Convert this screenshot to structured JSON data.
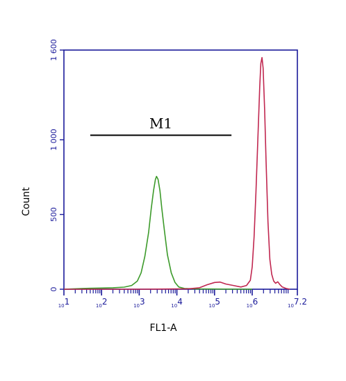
{
  "chart_data": {
    "type": "line",
    "xlabel": "FL1-A",
    "ylabel": "Count",
    "x_scale": "log",
    "xlim": [
      1,
      7.2
    ],
    "ylim": [
      0,
      1600
    ],
    "x_ticks": [
      {
        "value": 1,
        "label": "10^1"
      },
      {
        "value": 2,
        "label": "10^2"
      },
      {
        "value": 3,
        "label": "10^3"
      },
      {
        "value": 4,
        "label": "10^4"
      },
      {
        "value": 5,
        "label": "10^5"
      },
      {
        "value": 6,
        "label": "10^6"
      },
      {
        "value": 7.2,
        "label": "10^7.2"
      }
    ],
    "y_ticks": [
      {
        "value": 0,
        "label": "0"
      },
      {
        "value": 500,
        "label": "500"
      },
      {
        "value": 1000,
        "label": "1 000"
      },
      {
        "value": 1600,
        "label": "1 600"
      }
    ],
    "gate": {
      "label": "M1",
      "x_start": 1.7,
      "x_end": 5.45,
      "y": 1030
    },
    "series": [
      {
        "color": "#3c9a2a",
        "points": [
          [
            1.0,
            0
          ],
          [
            1.5,
            5
          ],
          [
            2.0,
            8
          ],
          [
            2.3,
            10
          ],
          [
            2.6,
            14
          ],
          [
            2.8,
            25
          ],
          [
            2.95,
            55
          ],
          [
            3.05,
            110
          ],
          [
            3.15,
            220
          ],
          [
            3.25,
            380
          ],
          [
            3.32,
            540
          ],
          [
            3.38,
            660
          ],
          [
            3.43,
            735
          ],
          [
            3.46,
            755
          ],
          [
            3.5,
            735
          ],
          [
            3.55,
            660
          ],
          [
            3.6,
            540
          ],
          [
            3.67,
            390
          ],
          [
            3.75,
            230
          ],
          [
            3.85,
            110
          ],
          [
            3.95,
            45
          ],
          [
            4.05,
            15
          ],
          [
            4.2,
            5
          ],
          [
            4.5,
            2
          ],
          [
            6.0,
            0
          ]
        ]
      },
      {
        "color": "#c0264f",
        "points": [
          [
            1.0,
            0
          ],
          [
            3.0,
            0
          ],
          [
            4.3,
            3
          ],
          [
            4.6,
            10
          ],
          [
            4.8,
            30
          ],
          [
            5.0,
            45
          ],
          [
            5.15,
            48
          ],
          [
            5.3,
            35
          ],
          [
            5.5,
            25
          ],
          [
            5.7,
            15
          ],
          [
            5.85,
            25
          ],
          [
            5.95,
            60
          ],
          [
            6.0,
            150
          ],
          [
            6.05,
            350
          ],
          [
            6.1,
            650
          ],
          [
            6.15,
            1000
          ],
          [
            6.2,
            1350
          ],
          [
            6.23,
            1510
          ],
          [
            6.26,
            1550
          ],
          [
            6.29,
            1480
          ],
          [
            6.33,
            1200
          ],
          [
            6.37,
            850
          ],
          [
            6.42,
            450
          ],
          [
            6.47,
            200
          ],
          [
            6.52,
            100
          ],
          [
            6.57,
            55
          ],
          [
            6.62,
            40
          ],
          [
            6.68,
            50
          ],
          [
            6.74,
            30
          ],
          [
            6.8,
            15
          ],
          [
            6.9,
            5
          ],
          [
            7.0,
            0
          ]
        ]
      }
    ]
  }
}
